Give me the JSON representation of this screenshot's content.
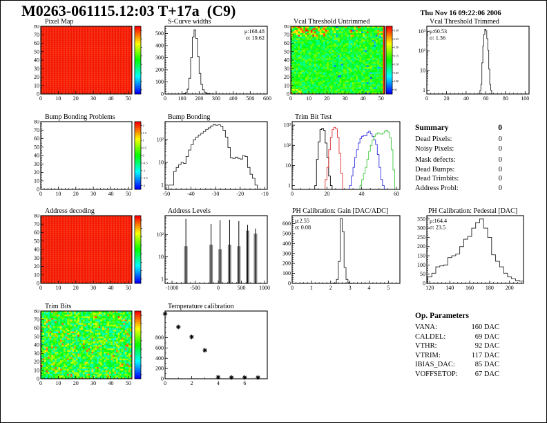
{
  "page": {
    "title": "M0263-061115.12:03 T+17a  (C9)",
    "timestamp": "Thu Nov 16 09:22:06 2006"
  },
  "summary": {
    "heading": "Summary",
    "heading_value": "0",
    "rows": [
      {
        "label": "Dead Pixels:",
        "value": "0"
      },
      {
        "label": "Noisy Pixels:",
        "value": "0"
      },
      {
        "label": "Mask defects:",
        "value": "0"
      },
      {
        "label": "Dead Bumps:",
        "value": "0"
      },
      {
        "label": "Dead Trimbits:",
        "value": "0"
      },
      {
        "label": "Address Probl:",
        "value": "0"
      }
    ]
  },
  "op_parameters": {
    "heading": "Op. Parameters",
    "rows": [
      {
        "label": "VANA:",
        "value": "160 DAC"
      },
      {
        "label": "CALDEL:",
        "value": "69 DAC"
      },
      {
        "label": "VTHR:",
        "value": "92 DAC"
      },
      {
        "label": "VTRIM:",
        "value": "117 DAC"
      },
      {
        "label": "IBIAS_DAC:",
        "value": "85 DAC"
      },
      {
        "label": "VOFFSETOP:",
        "value": "67 DAC"
      }
    ]
  },
  "chart_data": [
    {
      "id": "pixel-map",
      "type": "heatmap",
      "title": "Pixel Map",
      "style": "uniform-red",
      "xlim": [
        0,
        52
      ],
      "ylim": [
        0,
        80
      ],
      "x_ticks": [
        0,
        10,
        20,
        30,
        40,
        50
      ],
      "y_ticks": [
        0,
        10,
        20,
        30,
        40,
        50,
        60,
        70,
        80
      ],
      "colorbar": {
        "labels": []
      },
      "note": "all pixels responding - solid red map"
    },
    {
      "id": "s-curve-widths",
      "type": "histogram",
      "title": "S-Curve widths",
      "xlim": [
        0,
        600
      ],
      "ylim": [
        0,
        560
      ],
      "x_ticks": [
        0,
        100,
        200,
        300,
        400,
        500,
        600
      ],
      "y_ticks": [
        0,
        100,
        200,
        300,
        400,
        500
      ],
      "bin_start": 100,
      "bin_width": 10,
      "counts": [
        2,
        4,
        12,
        40,
        130,
        300,
        470,
        530,
        460,
        310,
        170,
        80,
        35,
        15,
        6,
        3,
        2,
        1
      ],
      "stats": {
        "pos": "tr",
        "lines": [
          "μ:168.48",
          "σ: 19.62"
        ]
      }
    },
    {
      "id": "vcal-untrimmed",
      "type": "heatmap",
      "title": "Vcal Threshold Untrimmed",
      "style": "noise",
      "xlim": [
        0,
        52
      ],
      "ylim": [
        0,
        80
      ],
      "x_ticks": [
        0,
        10,
        20,
        30,
        40,
        50
      ],
      "y_ticks": [
        0,
        10,
        20,
        30,
        40,
        50,
        60,
        70,
        80
      ],
      "value_range": [
        90,
        135
      ],
      "typical_value": 112,
      "colorbar": {
        "labels": [
          "130",
          "125",
          "120",
          "115",
          "110",
          "105",
          "100",
          "95"
        ]
      },
      "note": "mostly green/cyan ~108-118, warmer orange/red specks top-left, red strip right edge, sparse blue pixels"
    },
    {
      "id": "vcal-trimmed",
      "type": "histogram",
      "title": "Vcal Threshold Trimmed",
      "log_y": true,
      "xlim": [
        0,
        104
      ],
      "ylim": [
        0.65,
        1800
      ],
      "x_ticks": [
        0,
        20,
        40,
        60,
        80,
        100
      ],
      "y_tick_labels": [
        "1",
        "10",
        "10²",
        "10³"
      ],
      "bin_start": 54,
      "bin_width": 1,
      "counts": [
        1,
        2,
        25,
        180,
        700,
        1250,
        1050,
        420,
        110,
        12,
        2,
        1
      ],
      "stats": {
        "pos": "tl",
        "lines": [
          "μ:60.53",
          "σ: 1.36"
        ]
      }
    },
    {
      "id": "bump-bonding-problems",
      "type": "heatmap",
      "title": "Bump Bonding Problems",
      "style": "empty",
      "xlim": [
        0,
        52
      ],
      "ylim": [
        0,
        80
      ],
      "x_ticks": [
        0,
        10,
        20,
        30,
        40,
        50
      ],
      "y_ticks": [
        0,
        10,
        20,
        30,
        40,
        50,
        60,
        70,
        80
      ],
      "colorbar": {
        "labels": [
          "2",
          "1.5",
          "1",
          "0.5",
          "0",
          "-0.5",
          "-1",
          "-1.5",
          "-2"
        ]
      },
      "note": "no bump bonding problems - empty white map"
    },
    {
      "id": "bump-bonding",
      "type": "histogram",
      "title": "Bump Bonding",
      "log_y": true,
      "xlim": [
        -50.5,
        -9
      ],
      "ylim": [
        0.65,
        620
      ],
      "x_ticks": [
        -50,
        -40,
        -30,
        -20,
        -10
      ],
      "y_tick_labels": [
        "1",
        "10",
        "10²"
      ],
      "bin_start": -49,
      "bin_width": 1,
      "counts": [
        1,
        1,
        4,
        6,
        8,
        10,
        9,
        18,
        35,
        60,
        100,
        130,
        160,
        190,
        230,
        280,
        330,
        400,
        460,
        430,
        450,
        390,
        260,
        130,
        45,
        16,
        15,
        17,
        15,
        14,
        20,
        18,
        6,
        3,
        2,
        1
      ]
    },
    {
      "id": "trim-bit-test",
      "type": "multi_histogram",
      "title": "Trim Bit Test",
      "log_y": true,
      "xlim": [
        0,
        62
      ],
      "ylim": [
        0.65,
        1500
      ],
      "x_ticks": [
        0,
        20,
        40,
        60
      ],
      "y_tick_labels": [
        "1",
        "10",
        "10²",
        "10³"
      ],
      "series": [
        {
          "name": "trim-bit-hist-black",
          "color": "#000000",
          "bin_start": 13,
          "bin_width": 1,
          "counts": [
            1,
            20,
            150,
            600,
            700,
            560,
            130,
            25,
            3,
            1
          ]
        },
        {
          "name": "trim-bit-hist-red",
          "color": "#e03030",
          "bin_start": 19,
          "bin_width": 1,
          "counts": [
            2,
            8,
            60,
            250,
            600,
            780,
            650,
            250,
            40,
            4
          ]
        },
        {
          "name": "trim-bit-hist-blue",
          "color": "#3030e0",
          "bin_start": 33,
          "bin_width": 1,
          "counts": [
            1,
            3,
            8,
            25,
            60,
            130,
            220,
            280,
            320,
            300,
            430,
            500,
            370,
            280,
            190,
            110,
            35,
            8,
            2,
            1
          ]
        },
        {
          "name": "trim-bit-hist-green",
          "color": "#40c840",
          "bin_start": 39,
          "bin_width": 1,
          "counts": [
            1,
            2,
            4,
            8,
            20,
            50,
            100,
            180,
            280,
            360,
            420,
            390,
            360,
            410,
            500,
            560,
            460,
            240,
            60,
            6
          ]
        }
      ]
    },
    {
      "id": "address-decoding",
      "type": "heatmap",
      "title": "Address decoding",
      "style": "uniform-red",
      "xlim": [
        0,
        52
      ],
      "ylim": [
        0,
        80
      ],
      "x_ticks": [
        0,
        10,
        20,
        30,
        40,
        50
      ],
      "y_ticks": [
        0,
        10,
        20,
        30,
        40,
        50,
        60,
        70,
        80
      ],
      "colorbar": {
        "labels": []
      },
      "note": "all addresses decoded - solid red map"
    },
    {
      "id": "address-levels",
      "type": "spikes",
      "title": "Address Levels",
      "log_y": true,
      "xlim": [
        -1150,
        1060
      ],
      "ylim": [
        0.65,
        700
      ],
      "x_ticks": [
        -1000,
        -500,
        0,
        500,
        1000
      ],
      "y_tick_labels": [
        "1",
        "10",
        "10²"
      ],
      "spikes": [
        {
          "x": -700,
          "peak": 500,
          "bar": 30
        },
        {
          "x": -155,
          "peak": 300,
          "bar": 35
        },
        {
          "x": 40,
          "peak": 440,
          "bar": 22
        },
        {
          "x": 245,
          "peak": 460,
          "bar": 35
        },
        {
          "x": 445,
          "peak": 400,
          "bar": 30
        },
        {
          "x": 635,
          "peak": 270,
          "bar": 150
        },
        {
          "x": 805,
          "peak": 185,
          "bar": 110
        }
      ]
    },
    {
      "id": "ph-gain",
      "type": "histogram",
      "title": "PH Calibration: Gain [DAC/ADC]",
      "xlim": [
        0,
        5.6
      ],
      "ylim": [
        0,
        680
      ],
      "x_ticks": [
        0,
        1,
        2,
        3,
        4,
        5
      ],
      "y_ticks": [
        0,
        100,
        200,
        300,
        400,
        500,
        600
      ],
      "bin_start": 2.0,
      "bin_width": 0.1,
      "counts": [
        1,
        2,
        5,
        40,
        220,
        650,
        520,
        160,
        40,
        8,
        2
      ],
      "stats": {
        "pos": "tl",
        "lines": [
          "μ:2.55",
          "σ: 0.08"
        ]
      }
    },
    {
      "id": "ph-pedestal",
      "type": "histogram",
      "title": "PH Calibration: Pedestal [DAC]",
      "xlim": [
        117,
        214
      ],
      "ylim": [
        0,
        368
      ],
      "x_ticks": [
        120,
        140,
        160,
        180,
        200
      ],
      "y_ticks": [
        0,
        50,
        100,
        150,
        200,
        250,
        300,
        350
      ],
      "bin_start": 118,
      "bin_width": 4,
      "counts": [
        35,
        55,
        90,
        95,
        100,
        140,
        150,
        160,
        200,
        240,
        255,
        300,
        330,
        350,
        300,
        250,
        155,
        120,
        90,
        55,
        35,
        25,
        15,
        12
      ],
      "stats": {
        "pos": "tl",
        "lines": [
          "μ:164.4",
          "σ: 23.5"
        ]
      }
    },
    {
      "id": "trim-bits",
      "type": "heatmap",
      "title": "Trim Bits",
      "style": "noise",
      "xlim": [
        0,
        52
      ],
      "ylim": [
        0,
        80
      ],
      "x_ticks": [
        0,
        10,
        20,
        30,
        40,
        50
      ],
      "y_ticks": [
        0,
        10,
        20,
        30,
        40,
        50,
        60,
        70,
        80
      ],
      "colorbar": {
        "labels": []
      },
      "note": "green map with yellow/orange and cyan speckles"
    },
    {
      "id": "temperature-calibration",
      "type": "scatter",
      "title": "Temperature calibration",
      "xlim": [
        0,
        7.7
      ],
      "ylim": [
        0,
        1320
      ],
      "x_ticks": [
        0,
        2,
        4,
        6
      ],
      "y_ticks": [
        0,
        200,
        400,
        600,
        800
      ],
      "marker": "asterisk",
      "points": [
        [
          0,
          1265
        ],
        [
          1,
          1010
        ],
        [
          2,
          815
        ],
        [
          3,
          555
        ],
        [
          4,
          30
        ],
        [
          5,
          25
        ],
        [
          6,
          25
        ],
        [
          7,
          25
        ]
      ]
    }
  ]
}
